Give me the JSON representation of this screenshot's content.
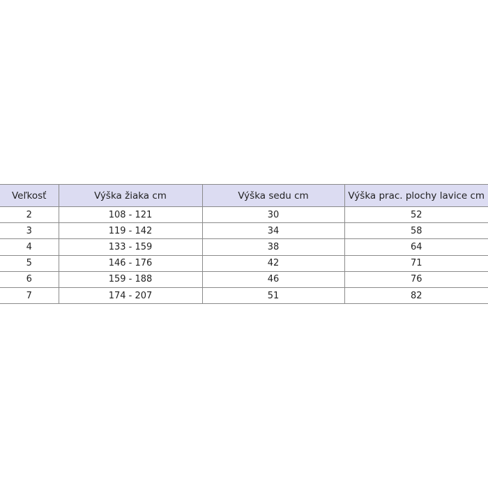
{
  "table": {
    "header_bg": "#dcdcf2",
    "headers": [
      "Veľkosť",
      "Výška žiaka cm",
      "Výška sedu cm",
      "Výška prac. plochy lavice cm"
    ],
    "rows": [
      [
        "2",
        "108 - 121",
        "30",
        "52"
      ],
      [
        "3",
        "119 - 142",
        "34",
        "58"
      ],
      [
        "4",
        "133 - 159",
        "38",
        "64"
      ],
      [
        "5",
        "146 - 176",
        "42",
        "71"
      ],
      [
        "6",
        "159 - 188",
        "46",
        "76"
      ],
      [
        "7",
        "174 - 207",
        "51",
        "82"
      ]
    ]
  }
}
